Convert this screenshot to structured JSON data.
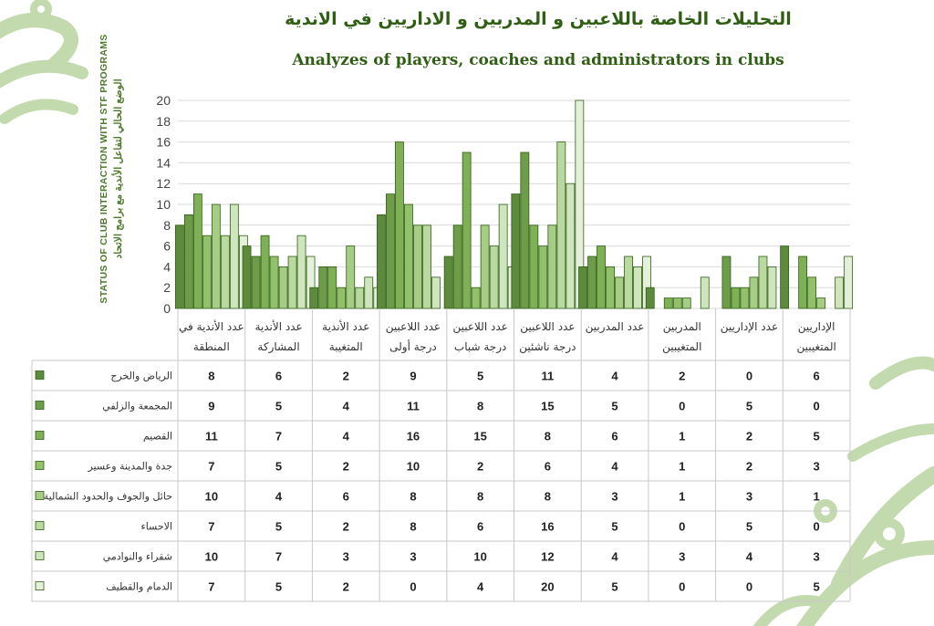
{
  "chart_data": {
    "type": "bar",
    "title": "التحليلات الخاصة باللاعبين و المدربين و الاداريين في الاندية",
    "subtitle": "Analyzes of players, coaches and administrators in clubs",
    "side_title_en": "STATUS OF CLUB INTERACTION WITH STF PROGRAMS",
    "side_title_ar": "الوضع الحالي لتفاعل الأندية مع برامج الاتحاد",
    "ylim": [
      0,
      20
    ],
    "yticks": [
      "0",
      "2",
      "4",
      "6",
      "8",
      "10",
      "12",
      "14",
      "16",
      "18",
      "20"
    ],
    "categories": [
      [
        "عدد الأندية في",
        "المنطقة"
      ],
      [
        "عدد الأندية",
        "المشاركة"
      ],
      [
        "عدد الأندية",
        "المتغيبة"
      ],
      [
        "عدد اللاعبين",
        "درجة أولى"
      ],
      [
        "عدد اللاعبين",
        "درجة شباب"
      ],
      [
        "عدد اللاعبين",
        "درجة ناشئين"
      ],
      [
        "عدد المدربين"
      ],
      [
        "المدربين",
        "المتغيبين"
      ],
      [
        "عدد الإداريين"
      ],
      [
        "الإداريين",
        "المتغيبين"
      ]
    ],
    "series": [
      {
        "name": "الرياض والخرج",
        "color": "#5e8a3d",
        "values": [
          8,
          6,
          2,
          9,
          5,
          11,
          4,
          2,
          0,
          6
        ]
      },
      {
        "name": "المجمعة والزلفي",
        "color": "#6e9c48",
        "values": [
          9,
          5,
          4,
          11,
          8,
          15,
          5,
          0,
          5,
          0
        ]
      },
      {
        "name": "القصيم",
        "color": "#7fb055",
        "values": [
          11,
          7,
          4,
          16,
          15,
          8,
          6,
          1,
          2,
          5
        ]
      },
      {
        "name": "جدة والمدينة وعسير",
        "color": "#93c06a",
        "values": [
          7,
          5,
          2,
          10,
          2,
          6,
          4,
          1,
          2,
          3
        ]
      },
      {
        "name": "حائل والجوف والحدود الشمالية",
        "color": "#a6cc85",
        "values": [
          10,
          4,
          6,
          8,
          8,
          8,
          3,
          1,
          3,
          1
        ]
      },
      {
        "name": "الاحساء",
        "color": "#bad9a0",
        "values": [
          7,
          5,
          2,
          8,
          6,
          16,
          5,
          0,
          5,
          0
        ]
      },
      {
        "name": "شقراء والنوادمي",
        "color": "#cfe5bd",
        "values": [
          10,
          7,
          3,
          3,
          10,
          12,
          4,
          3,
          4,
          3
        ]
      },
      {
        "name": "الدمام والقطيف",
        "color": "#e4f0d9",
        "values": [
          7,
          5,
          2,
          0,
          4,
          20,
          5,
          0,
          0,
          5
        ]
      }
    ],
    "grid": true,
    "legend": "table-left"
  }
}
